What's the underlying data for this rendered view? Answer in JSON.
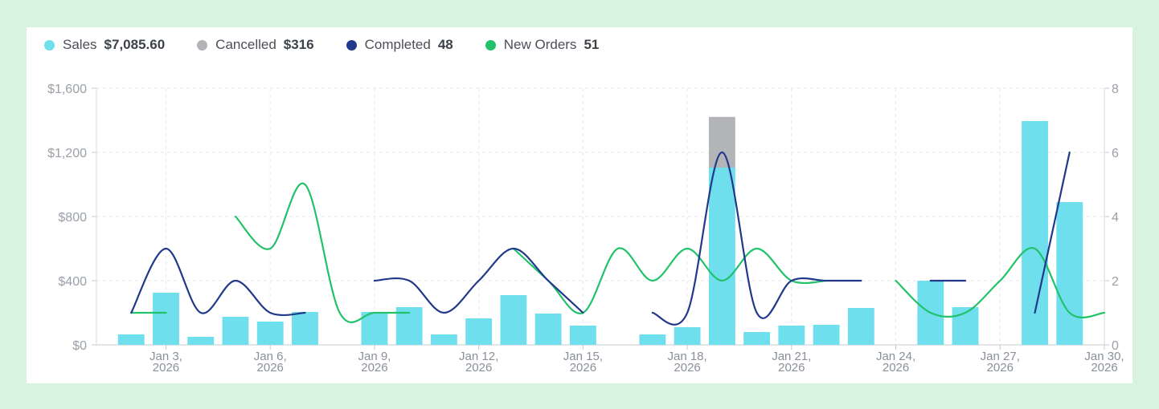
{
  "legend": [
    {
      "label": "Sales",
      "value": "$7,085.60",
      "color": "#6fdfee"
    },
    {
      "label": "Cancelled",
      "value": "$316",
      "color": "#b3b4b8"
    },
    {
      "label": "Completed",
      "value": "48",
      "color": "#22388a"
    },
    {
      "label": "New Orders",
      "value": "51",
      "color": "#21c26a"
    }
  ],
  "chart_data": {
    "type": "bar",
    "days": [
      2,
      3,
      4,
      5,
      6,
      7,
      8,
      9,
      10,
      11,
      12,
      13,
      14,
      15,
      16,
      17,
      18,
      19,
      20,
      21,
      22,
      23,
      24,
      25,
      26,
      27,
      28,
      29,
      30
    ],
    "x_ticks": [
      {
        "day": 3,
        "label": [
          "Jan 3,",
          "2026"
        ]
      },
      {
        "day": 6,
        "label": [
          "Jan 6,",
          "2026"
        ]
      },
      {
        "day": 9,
        "label": [
          "Jan 9,",
          "2026"
        ]
      },
      {
        "day": 12,
        "label": [
          "Jan 12,",
          "2026"
        ]
      },
      {
        "day": 15,
        "label": [
          "Jan 15,",
          "2026"
        ]
      },
      {
        "day": 18,
        "label": [
          "Jan 18,",
          "2026"
        ]
      },
      {
        "day": 21,
        "label": [
          "Jan 21,",
          "2026"
        ]
      },
      {
        "day": 24,
        "label": [
          "Jan 24,",
          "2026"
        ]
      },
      {
        "day": 27,
        "label": [
          "Jan 27,",
          "2026"
        ]
      },
      {
        "day": 30,
        "label": [
          "Jan 30,",
          "2026"
        ]
      }
    ],
    "y_left": {
      "min": 0,
      "max": 1600,
      "ticks": [
        0,
        400,
        800,
        1200,
        1600
      ],
      "labels": [
        "$0",
        "$400",
        "$800",
        "$1,200",
        "$1,600"
      ]
    },
    "y_right": {
      "min": 0,
      "max": 8,
      "ticks": [
        0,
        2,
        4,
        6,
        8
      ],
      "labels": [
        "0",
        "2",
        "4",
        "6",
        "8"
      ]
    },
    "series": [
      {
        "name": "Sales",
        "kind": "bar",
        "axis": "left",
        "values": [
          65,
          325,
          50,
          175,
          145,
          205,
          0,
          205,
          235,
          65,
          165,
          310,
          195,
          120,
          0,
          65,
          110,
          1105,
          80,
          120,
          125,
          230,
          0,
          400,
          235,
          0,
          1395,
          890,
          0
        ]
      },
      {
        "name": "Cancelled",
        "kind": "bar-stacked",
        "axis": "left",
        "values": [
          0,
          0,
          0,
          0,
          0,
          0,
          0,
          0,
          0,
          0,
          0,
          0,
          0,
          0,
          0,
          0,
          0,
          316,
          0,
          0,
          0,
          0,
          0,
          0,
          0,
          0,
          0,
          0,
          0
        ]
      },
      {
        "name": "Completed",
        "kind": "line",
        "axis": "right",
        "values": [
          1,
          3,
          1,
          2,
          1,
          1,
          null,
          2,
          2,
          1,
          2,
          3,
          2,
          1,
          null,
          1,
          1,
          6,
          1,
          2,
          2,
          2,
          null,
          2,
          2,
          null,
          1,
          6,
          null
        ]
      },
      {
        "name": "New Orders",
        "kind": "line",
        "axis": "right",
        "values": [
          1,
          1,
          null,
          4,
          3,
          5,
          1,
          1,
          1,
          null,
          null,
          3,
          2,
          1,
          3,
          2,
          3,
          2,
          3,
          2,
          2,
          null,
          2,
          1,
          1,
          2,
          3,
          1,
          1
        ]
      }
    ]
  }
}
